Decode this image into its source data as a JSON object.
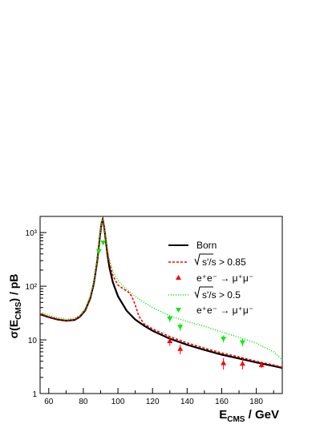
{
  "chart_data": {
    "type": "line",
    "title": "",
    "xlabel": {
      "main": "E",
      "sub": "CMS",
      "rest": " / GeV"
    },
    "ylabel": {
      "pre": "σ(E",
      "sub": "CMS",
      "post": ") / pB"
    },
    "xlim": [
      55,
      195
    ],
    "ylim": [
      1,
      2000
    ],
    "yscale": "log",
    "x_ticks": [
      60,
      80,
      100,
      120,
      140,
      160,
      180
    ],
    "y_ticks": [
      {
        "value": 1,
        "label": "1"
      },
      {
        "value": 10,
        "label": "10"
      },
      {
        "value": 100,
        "label": "10²"
      },
      {
        "value": 1000,
        "label": "10³"
      }
    ],
    "grid": false,
    "legend_position": "top-right",
    "series": [
      {
        "name": "Born",
        "label": "Born",
        "style": "solid",
        "color": "#000000",
        "points": [
          [
            55,
            30
          ],
          [
            60,
            26.5
          ],
          [
            65,
            24
          ],
          [
            70,
            22.7
          ],
          [
            75,
            23.5
          ],
          [
            78,
            27
          ],
          [
            81,
            35
          ],
          [
            84,
            60
          ],
          [
            86,
            110
          ],
          [
            88,
            290
          ],
          [
            89.5,
            800
          ],
          [
            90.5,
            1500
          ],
          [
            91.2,
            1750
          ],
          [
            92,
            1300
          ],
          [
            93,
            700
          ],
          [
            94,
            380
          ],
          [
            95,
            230
          ],
          [
            97,
            120
          ],
          [
            100,
            65
          ],
          [
            105,
            35
          ],
          [
            110,
            24
          ],
          [
            115,
            18.5
          ],
          [
            120,
            14.8
          ],
          [
            130,
            10.5
          ],
          [
            140,
            8.1
          ],
          [
            150,
            6.5
          ],
          [
            160,
            5.3
          ],
          [
            170,
            4.5
          ],
          [
            180,
            3.8
          ],
          [
            190,
            3.25
          ],
          [
            195,
            3.0
          ]
        ]
      },
      {
        "name": "sqrt085",
        "label_pre": "s'/s > 0.85",
        "style": "dashed",
        "color": "#ff0000",
        "points": [
          [
            55,
            31
          ],
          [
            60,
            27
          ],
          [
            65,
            24.5
          ],
          [
            70,
            23
          ],
          [
            75,
            24
          ],
          [
            78,
            27.5
          ],
          [
            81,
            36
          ],
          [
            84,
            62
          ],
          [
            86,
            115
          ],
          [
            88,
            300
          ],
          [
            89.5,
            820
          ],
          [
            90.5,
            1500
          ],
          [
            91.2,
            1700
          ],
          [
            92,
            1300
          ],
          [
            93,
            750
          ],
          [
            94,
            430
          ],
          [
            95,
            280
          ],
          [
            97,
            160
          ],
          [
            100,
            105
          ],
          [
            103,
            90
          ],
          [
            106,
            78
          ],
          [
            108,
            65
          ],
          [
            110,
            45
          ],
          [
            112,
            28
          ],
          [
            115,
            20
          ],
          [
            120,
            16
          ],
          [
            130,
            11.5
          ],
          [
            140,
            8.8
          ],
          [
            150,
            7.0
          ],
          [
            160,
            5.7
          ],
          [
            170,
            4.8
          ],
          [
            180,
            4.0
          ],
          [
            190,
            3.4
          ],
          [
            195,
            3.1
          ]
        ]
      },
      {
        "name": "sqrt05",
        "label_pre": "s'/s > 0.5",
        "style": "dotted",
        "color": "#00ee00",
        "points": [
          [
            55,
            33
          ],
          [
            60,
            29
          ],
          [
            65,
            26
          ],
          [
            70,
            24.5
          ],
          [
            75,
            25.5
          ],
          [
            78,
            29
          ],
          [
            81,
            38
          ],
          [
            84,
            65
          ],
          [
            86,
            120
          ],
          [
            88,
            310
          ],
          [
            89.5,
            850
          ],
          [
            90.5,
            1550
          ],
          [
            91.2,
            1750
          ],
          [
            92,
            1350
          ],
          [
            93,
            800
          ],
          [
            94,
            480
          ],
          [
            95,
            320
          ],
          [
            97,
            190
          ],
          [
            100,
            130
          ],
          [
            103,
            100
          ],
          [
            106,
            82
          ],
          [
            110,
            65
          ],
          [
            115,
            50
          ],
          [
            120,
            40
          ],
          [
            130,
            28
          ],
          [
            140,
            22
          ],
          [
            150,
            18
          ],
          [
            160,
            14
          ],
          [
            170,
            11.2
          ],
          [
            180,
            8.7
          ],
          [
            190,
            6.0
          ],
          [
            195,
            4.2
          ]
        ]
      }
    ],
    "data_points": [
      {
        "name": "mumu_085",
        "label": "e⁺e⁻ → μ⁺μ⁻",
        "marker": "triangle-up",
        "color": "#ff0000",
        "points": [
          [
            130,
            9.5,
            1.8
          ],
          [
            136,
            6.8,
            1.4
          ],
          [
            161,
            3.7,
            0.9
          ],
          [
            172,
            3.6,
            0.8
          ],
          [
            183,
            3.4,
            0.4
          ]
        ]
      },
      {
        "name": "mumu_05",
        "label": "e⁺e⁻ → μ⁺μ⁻",
        "marker": "triangle-down",
        "color": "#00ee00",
        "points": [
          [
            89,
            450,
            40
          ],
          [
            91.5,
            650,
            60
          ],
          [
            130,
            25,
            3.5
          ],
          [
            136,
            17.5,
            2.8
          ],
          [
            161,
            10.5,
            1.6
          ],
          [
            172,
            9.0,
            1.5
          ]
        ]
      }
    ]
  }
}
